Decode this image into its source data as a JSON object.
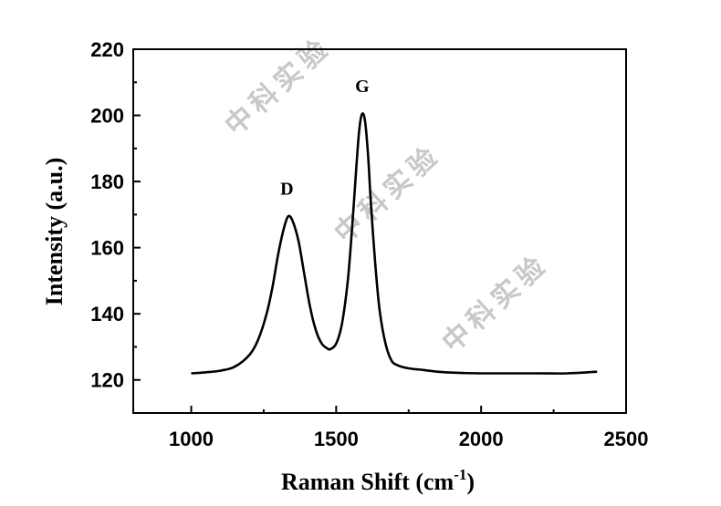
{
  "chart_data": {
    "type": "line",
    "xlabel": "Raman Shift (cm",
    "xlabel_superscript": "-1",
    "xlabel_suffix": ")",
    "ylabel": "Intensity (a.u.)",
    "xlim": [
      800,
      2500
    ],
    "ylim": [
      110,
      220
    ],
    "xticks": [
      1000,
      1500,
      2000,
      2500
    ],
    "yticks": [
      120,
      140,
      160,
      180,
      200,
      220
    ],
    "grid": false,
    "color": "#000000",
    "annotations": [
      {
        "text": "D",
        "x": 1330,
        "y": 176
      },
      {
        "text": "G",
        "x": 1590,
        "y": 207
      }
    ],
    "x": [
      1000,
      1050,
      1100,
      1150,
      1200,
      1230,
      1260,
      1280,
      1300,
      1320,
      1335,
      1350,
      1370,
      1390,
      1410,
      1430,
      1450,
      1470,
      1480,
      1500,
      1520,
      1540,
      1555,
      1570,
      1580,
      1590,
      1600,
      1610,
      1620,
      1635,
      1650,
      1670,
      1690,
      1710,
      1750,
      1800,
      1850,
      1900,
      2000,
      2100,
      2200,
      2300,
      2400
    ],
    "y": [
      122,
      122.3,
      122.8,
      124,
      127.5,
      132,
      140,
      148,
      158,
      166,
      169.5,
      168,
      162,
      152,
      142,
      135,
      131,
      129.5,
      129.3,
      131,
      137,
      150,
      166,
      185,
      196,
      200.5,
      198,
      188,
      173,
      155,
      141,
      131,
      126,
      124.5,
      123.5,
      123,
      122.5,
      122.2,
      122,
      122,
      122,
      122,
      122.5
    ]
  },
  "watermark_text": "中科实验"
}
